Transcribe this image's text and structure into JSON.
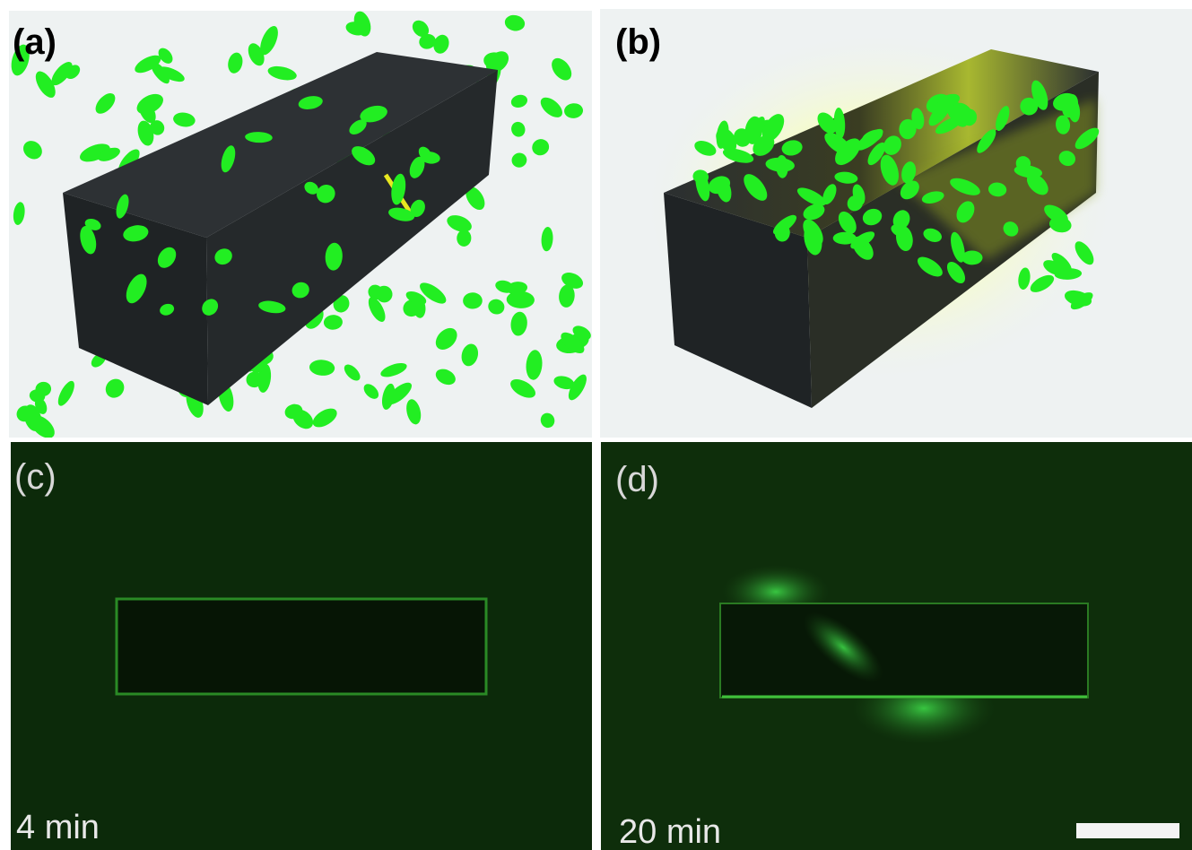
{
  "panels": [
    {
      "label": "(a)"
    },
    {
      "label": "(b)"
    },
    {
      "label": "(c)",
      "time": "4 min"
    },
    {
      "label": "(d)",
      "time": "20 min"
    }
  ]
}
